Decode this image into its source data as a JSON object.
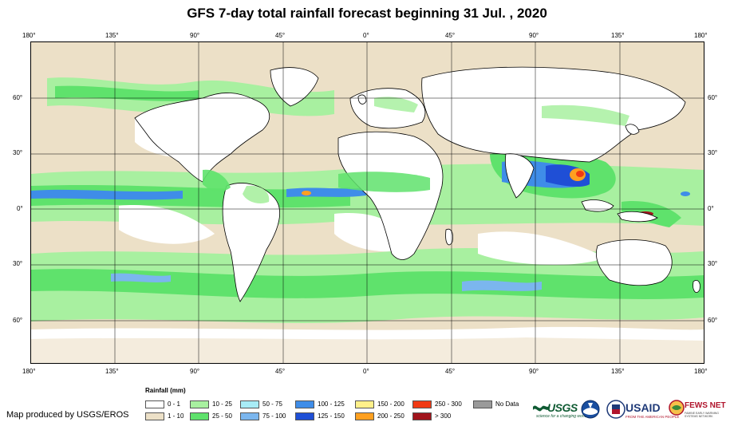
{
  "title": "GFS 7-day total rainfall forecast beginning 31 Jul. , 2020",
  "axes": {
    "lon_top": [
      "180°",
      "135°",
      "90°",
      "45°",
      "0°",
      "45°",
      "90°",
      "135°",
      "180°"
    ],
    "lon_bottom": [
      "180°",
      "135°",
      "90°",
      "45°",
      "0°",
      "45°",
      "90°",
      "135°",
      "180°"
    ],
    "lon_values": [
      -180,
      -135,
      -90,
      -45,
      0,
      45,
      90,
      135,
      180
    ],
    "lat_labels": [
      "60°",
      "30°",
      "0°",
      "30°",
      "60°"
    ],
    "lat_values": [
      60,
      30,
      0,
      -30,
      -60
    ],
    "lat_range": [
      -85,
      85
    ],
    "lon_range": [
      -180,
      180
    ]
  },
  "legend": {
    "title": "Rainfall (mm)",
    "items": [
      {
        "label": "0 - 1",
        "color": "#ffffff"
      },
      {
        "label": "1 - 10",
        "color": "#ece0c7"
      },
      {
        "label": "10 - 25",
        "color": "#a8f0a0"
      },
      {
        "label": "25 - 50",
        "color": "#5fe26c"
      },
      {
        "label": "50 - 75",
        "color": "#a8ecf6"
      },
      {
        "label": "75 - 100",
        "color": "#7bb6ee"
      },
      {
        "label": "100 - 125",
        "color": "#3f8de8"
      },
      {
        "label": "125 - 150",
        "color": "#1f4fd6"
      },
      {
        "label": "150 - 200",
        "color": "#fff08a"
      },
      {
        "label": "200 - 250",
        "color": "#ffa020"
      },
      {
        "label": "250 - 300",
        "color": "#f03a14"
      },
      {
        "label": "> 300",
        "color": "#a0141c"
      },
      {
        "label": "No Data",
        "color": "#9a9a9a"
      }
    ]
  },
  "credit": "Map produced by USGS/EROS",
  "logos": {
    "usgs": "USGS",
    "usgs_tagline": "science for a changing world",
    "usaid": "USAID",
    "usaid_tagline": "FROM THE AMERICAN PEOPLE",
    "fews": "FEWS NET",
    "fews_tagline": "FAMINE EARLY WARNING SYSTEMS NETWORK",
    "noaa_icon": "noaa-logo-icon",
    "usgs_icon": "usgs-wave-icon",
    "usaid_icon": "usaid-seal-icon",
    "fews_icon": "fews-globe-icon"
  }
}
